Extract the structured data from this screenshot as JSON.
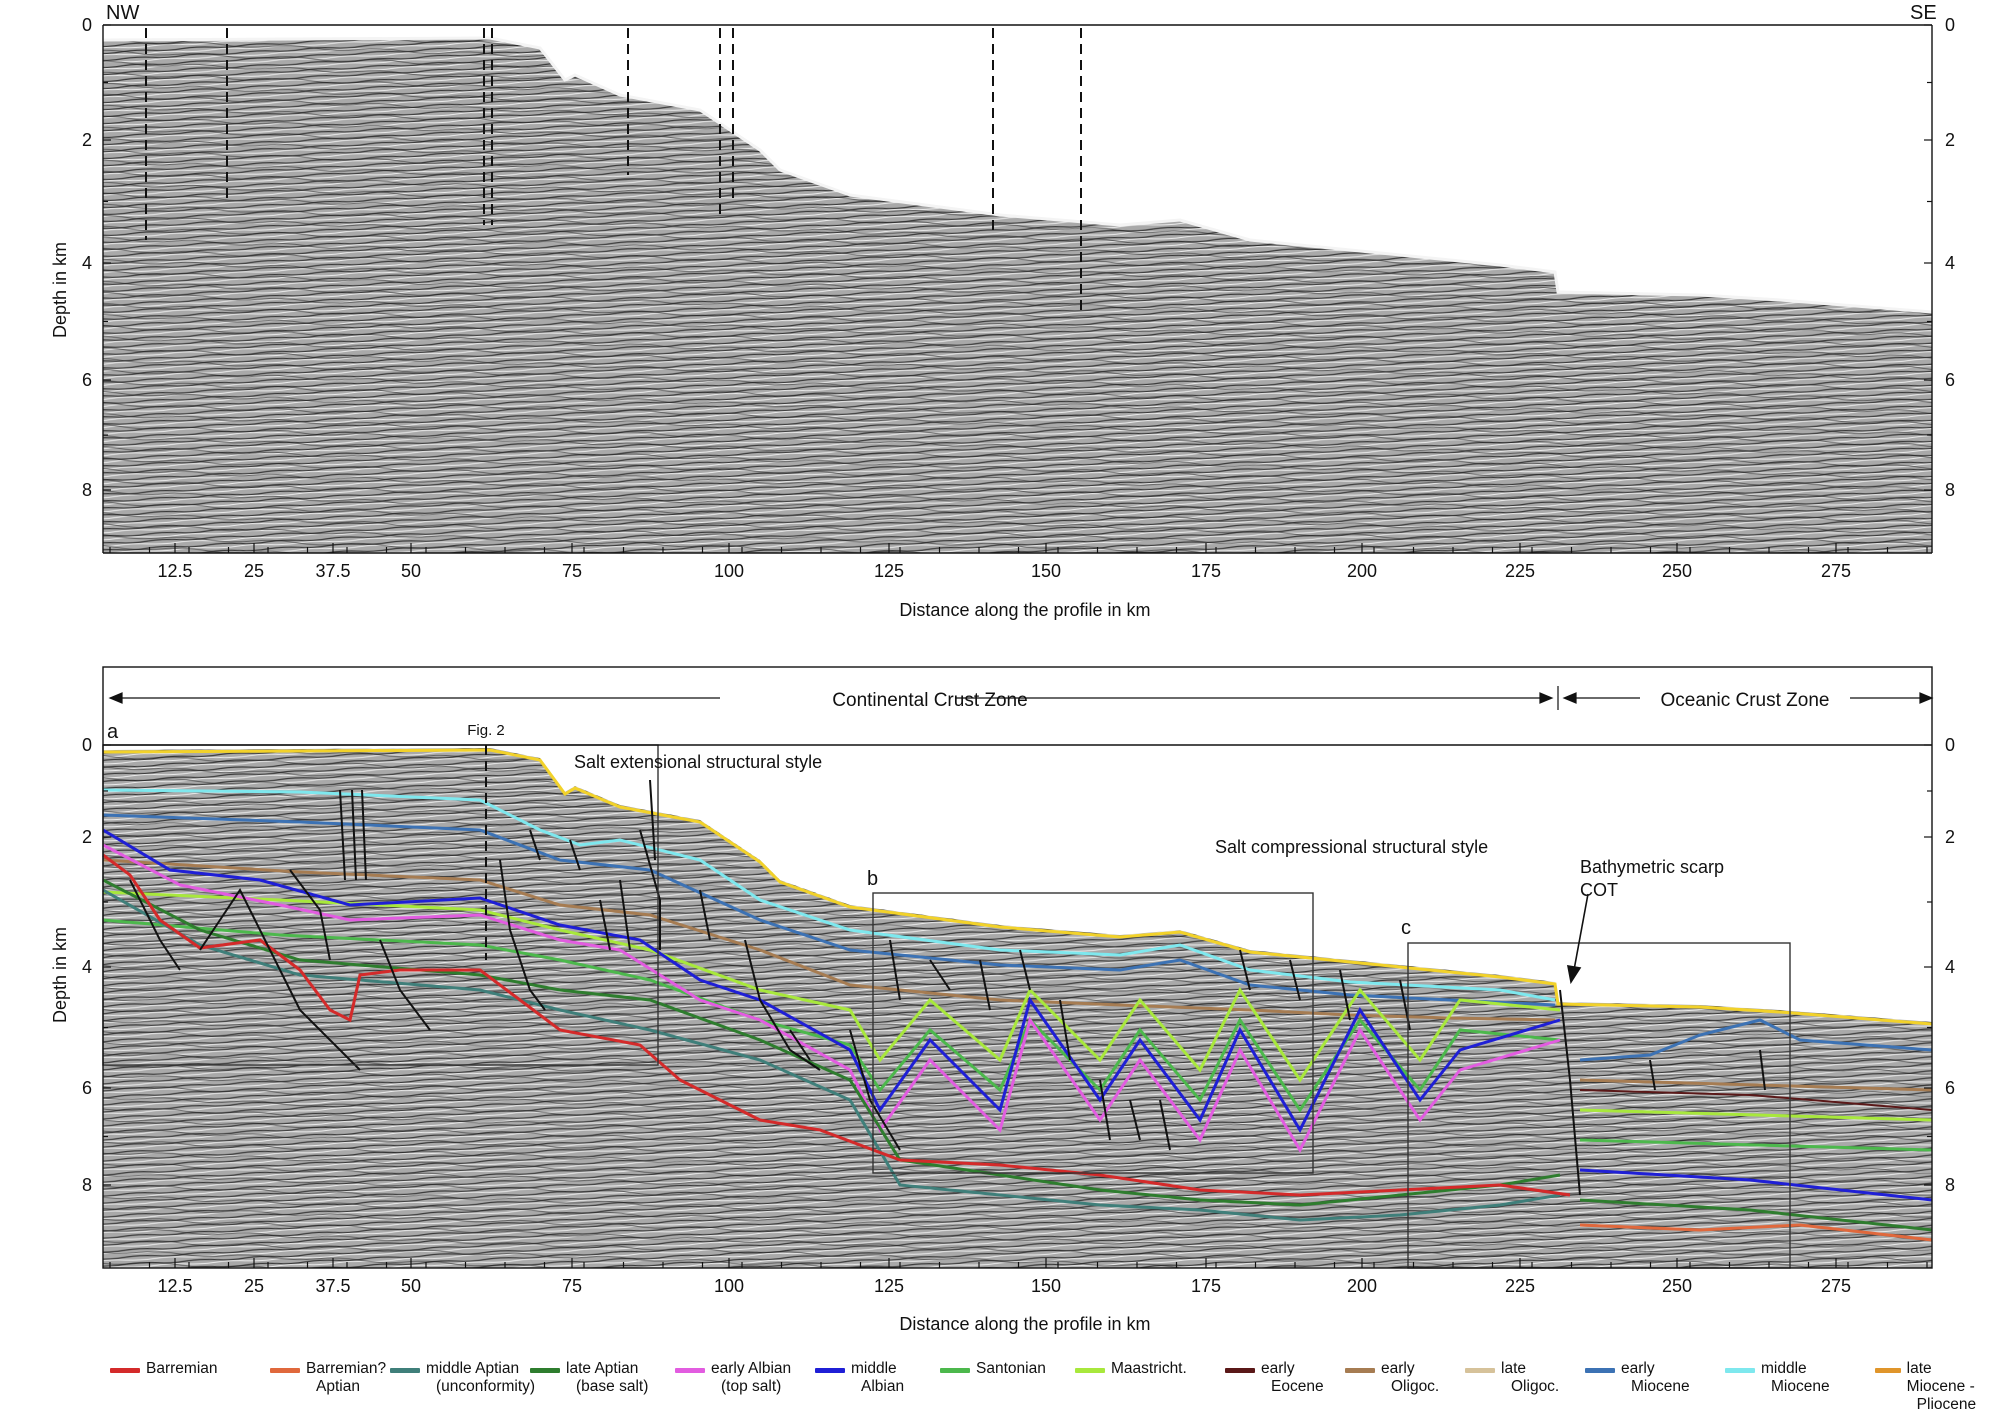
{
  "panel_top": {
    "direction_left": "NW",
    "direction_right": "SE",
    "ylabel": "Depth in km",
    "xlabel": "Distance along the profile in km",
    "x_ticks": [
      "12.5",
      "25",
      "37.5",
      "50",
      "75",
      "100",
      "125",
      "150",
      "175",
      "200",
      "225",
      "250",
      "275"
    ],
    "y_ticks_left": [
      "0",
      "2",
      "4",
      "6",
      "8"
    ],
    "y_ticks_right": [
      "0",
      "2",
      "4",
      "6",
      "8"
    ]
  },
  "panel_bottom": {
    "panel_label_a": "a",
    "panel_label_b": "b",
    "panel_label_c": "c",
    "zone_continental": "Continental Crust Zone",
    "zone_oceanic": "Oceanic Crust Zone",
    "fig2_label": "Fig. 2",
    "style_extensional": "Salt extensional structural style",
    "style_compressional": "Salt compressional structural style",
    "scarp_label_1": "Bathymetric scarp",
    "scarp_label_2": "COT",
    "ylabel": "Depth in km",
    "xlabel": "Distance along the profile in km",
    "x_ticks": [
      "12.5",
      "25",
      "37.5",
      "50",
      "75",
      "100",
      "125",
      "150",
      "175",
      "200",
      "225",
      "250",
      "275"
    ],
    "y_ticks_left": [
      "0",
      "2",
      "4",
      "6",
      "8"
    ],
    "y_ticks_right": [
      "0",
      "2",
      "4",
      "6",
      "8"
    ]
  },
  "legend": [
    {
      "label": "Barremian",
      "label2": "",
      "color": "#d42a2a"
    },
    {
      "label": "Barremian? -",
      "label2": "Aptian",
      "color": "#e0683c"
    },
    {
      "label": "middle Aptian",
      "label2": "(unconformity)",
      "color": "#3f7f7a"
    },
    {
      "label": "late Aptian",
      "label2": "(base salt)",
      "color": "#2e7d2e"
    },
    {
      "label": "early Albian",
      "label2": "(top salt)",
      "color": "#e25ce0"
    },
    {
      "label": "middle",
      "label2": "Albian",
      "color": "#1f1fd6"
    },
    {
      "label": "Santonian",
      "label2": "",
      "color": "#4cb84c"
    },
    {
      "label": "Maastricht.",
      "label2": "",
      "color": "#a8e83c"
    },
    {
      "label": "early",
      "label2": "Eocene",
      "color": "#5a1818"
    },
    {
      "label": "early",
      "label2": "Oligoc.",
      "color": "#a67c52"
    },
    {
      "label": "late",
      "label2": "Oligoc.",
      "color": "#d6c29a"
    },
    {
      "label": "early",
      "label2": "Miocene",
      "color": "#3c72b4"
    },
    {
      "label": "middle",
      "label2": "Miocene",
      "color": "#7ee8ee"
    },
    {
      "label": "late Miocene -",
      "label2": "Pliocene",
      "color": "#e0952a"
    }
  ]
}
